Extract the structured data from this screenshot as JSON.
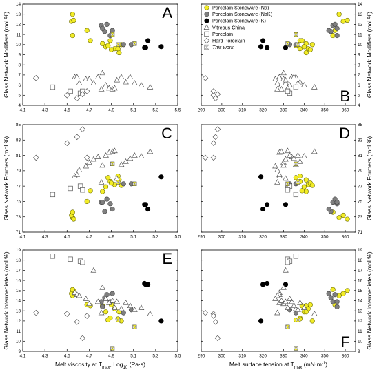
{
  "chart_data": {
    "type": "scatter",
    "legend": {
      "placement": "top-left of panel D",
      "items": [
        {
          "key": "na",
          "label": "Porcelain Stoneware (Na)",
          "marker": "circle",
          "fill": "#f2ec27",
          "stroke": "#6b6b00"
        },
        {
          "key": "nak",
          "label": "Porcelain Stoneware (NaK)",
          "marker": "circle",
          "fill": "#7f7f7f",
          "stroke": "#444444"
        },
        {
          "key": "k",
          "label": "Porcelain Stoneware (K)",
          "marker": "circle",
          "fill": "#000000",
          "stroke": "#000000"
        },
        {
          "key": "vitreous",
          "label": "Vitreous China",
          "marker": "triangle",
          "fill": "#ffffff",
          "stroke": "#555555"
        },
        {
          "key": "porcelain",
          "label": "Porcelain",
          "marker": "square",
          "fill": "#ffffff",
          "stroke": "#555555"
        },
        {
          "key": "hard",
          "label": "Hard Porcelain",
          "marker": "diamond",
          "fill": "#ffffff",
          "stroke": "#555555"
        },
        {
          "key": "thiswork",
          "label": "This work",
          "marker": "hourglass",
          "fill": "#ffffff",
          "stroke": "#777777",
          "italic": true
        }
      ]
    },
    "x_axes": {
      "viscosity": {
        "label": "Melt viscosity at T",
        "label_sub": "max",
        "label_suffix": ", Log",
        "label_sub2": "10",
        "label_end": " (Pa·s)",
        "range": [
          4.1,
          5.5
        ],
        "ticks": [
          "4.1",
          "4.3",
          "4.5",
          "4.7",
          "4.9",
          "5.1",
          "5.3",
          "5.5"
        ]
      },
      "tension": {
        "label": "Melt surface tension at T",
        "label_sub": "max",
        "label_end": " (mN·m",
        "label_sup": "-1",
        "label_close": ")",
        "range": [
          290,
          365
        ],
        "ticks": [
          "290",
          "300",
          "310",
          "320",
          "330",
          "340",
          "350",
          "360"
        ]
      }
    },
    "rows": [
      {
        "ylabel": "Glass Network Modifiers (mol %)",
        "range": [
          4,
          14
        ],
        "ticks": [
          "4",
          "5",
          "6",
          "7",
          "8",
          "9",
          "10",
          "11",
          "12",
          "13",
          "14"
        ],
        "letters": [
          "A",
          "B"
        ],
        "left_letter_pos": "top-right",
        "right_letter_pos": "bottom-right"
      },
      {
        "ylabel": "Glass Network Formers (mol %)",
        "range": [
          71,
          85
        ],
        "ticks": [
          "71",
          "73",
          "75",
          "77",
          "79",
          "81",
          "83",
          "85"
        ],
        "letters": [
          "C",
          "D"
        ],
        "left_letter_pos": "top-right",
        "right_letter_pos": "top-right"
      },
      {
        "ylabel": "Glass Network Intermediates (mol %)",
        "range": [
          9,
          19
        ],
        "ticks": [
          "9",
          "10",
          "11",
          "12",
          "13",
          "14",
          "15",
          "16",
          "17",
          "18",
          "19"
        ],
        "letters": [
          "E",
          "F"
        ],
        "left_letter_pos": "top-right",
        "right_letter_pos": "bottom-right"
      }
    ],
    "series": [
      {
        "key": "na",
        "name": "Porcelain Stoneware (Na)",
        "points": [
          {
            "visc": 4.55,
            "st": 357,
            "mod": 13.0,
            "form": 72.9,
            "int": 14.5
          },
          {
            "visc": 4.54,
            "st": 359,
            "mod": 12.3,
            "form": 73.2,
            "int": 14.7
          },
          {
            "visc": 4.56,
            "st": 361,
            "mod": 12.4,
            "form": 72.7,
            "int": 15.0
          },
          {
            "visc": 4.68,
            "st": 355,
            "mod": 11.4,
            "form": 75.0,
            "int": 13.6
          },
          {
            "visc": 4.55,
            "st": 354,
            "mod": 10.9,
            "form": 73.6,
            "int": 15.1
          },
          {
            "visc": 4.82,
            "st": 341,
            "mod": 10.1,
            "form": 76.3,
            "int": 13.5
          },
          {
            "visc": 4.85,
            "st": 340,
            "mod": 9.8,
            "form": 76.9,
            "int": 12.9
          },
          {
            "visc": 4.89,
            "st": 338,
            "mod": 10.4,
            "form": 77.6,
            "int": 12.3
          },
          {
            "visc": 4.93,
            "st": 342,
            "mod": 9.6,
            "form": 77.2,
            "int": 13.2
          },
          {
            "visc": 4.9,
            "st": 343,
            "mod": 9.5,
            "form": 77.4,
            "int": 13.6
          },
          {
            "visc": 4.97,
            "st": 341,
            "mod": 9.2,
            "form": 77.8,
            "int": 12.9
          },
          {
            "visc": 4.87,
            "st": 336,
            "mod": 9.9,
            "form": 78.1,
            "int": 12.1
          },
          {
            "visc": 4.96,
            "st": 338,
            "mod": 9.6,
            "form": 78.3,
            "int": 12.2
          },
          {
            "visc": 4.99,
            "st": 344,
            "mod": 10.0,
            "form": 77.1,
            "int": 12.0
          },
          {
            "visc": 4.71,
            "st": 339,
            "mod": 10.4,
            "form": 76.4,
            "int": 13.5
          }
        ]
      },
      {
        "key": "nak",
        "name": "Porcelain Stoneware (NaK)",
        "points": [
          {
            "visc": 4.81,
            "st": 354,
            "mod": 11.9,
            "form": 74.9,
            "int": 13.9
          },
          {
            "visc": 4.84,
            "st": 353,
            "mod": 11.3,
            "form": 73.7,
            "int": 14.3
          },
          {
            "visc": 4.86,
            "st": 355,
            "mod": 12.0,
            "form": 75.3,
            "int": 14.6
          },
          {
            "visc": 4.89,
            "st": 356,
            "mod": 10.9,
            "form": 74.7,
            "int": 13.9
          },
          {
            "visc": 4.91,
            "st": 352,
            "mod": 11.4,
            "form": 74.0,
            "int": 14.7
          },
          {
            "visc": 4.82,
            "st": 356,
            "mod": 11.6,
            "form": 74.9,
            "int": 13.4
          },
          {
            "visc": 5.01,
            "st": 336,
            "mod": 10.0,
            "form": 77.3,
            "int": 12.8
          },
          {
            "visc": 5.08,
            "st": 333,
            "mod": 10.0,
            "form": 77.3,
            "int": 13.1
          }
        ]
      },
      {
        "key": "k",
        "name": "Porcelain Stoneware (K)",
        "points": [
          {
            "visc": 5.2,
            "st": 322,
            "mod": 9.7,
            "form": 74.6,
            "int": 15.7
          },
          {
            "visc": 5.23,
            "st": 320,
            "mod": 10.4,
            "form": 74.0,
            "int": 15.6
          },
          {
            "visc": 5.35,
            "st": 319,
            "mod": 9.8,
            "form": 78.2,
            "int": 12.0
          },
          {
            "visc": 5.21,
            "st": 331,
            "mod": 9.7,
            "form": 74.6,
            "int": 15.6
          }
        ]
      },
      {
        "key": "vitreous",
        "name": "Vitreous China",
        "points": [
          {
            "visc": 4.57,
            "st": 328,
            "mod": 6.8,
            "form": 78.3,
            "int": 14.8
          },
          {
            "visc": 4.59,
            "st": 328,
            "mod": 6.8,
            "form": 78.5,
            "int": 14.6
          },
          {
            "visc": 4.61,
            "st": 327,
            "mod": 6.2,
            "form": 79.1,
            "int": 14.5
          },
          {
            "visc": 4.67,
            "st": 326,
            "mod": 6.6,
            "form": 79.6,
            "int": 14.2
          },
          {
            "visc": 4.7,
            "st": 330,
            "mod": 6.6,
            "form": 80.1,
            "int": 13.7
          },
          {
            "visc": 4.74,
            "st": 331,
            "mod": 6.2,
            "form": 80.5,
            "int": 17.0
          },
          {
            "visc": 4.78,
            "st": 334,
            "mod": 6.8,
            "form": 80.8,
            "int": 13.9
          },
          {
            "visc": 4.82,
            "st": 330,
            "mod": 7.2,
            "form": 79.7,
            "int": 15.3
          },
          {
            "visc": 4.85,
            "st": 333,
            "mod": 6.0,
            "form": 81.0,
            "int": 14.2
          },
          {
            "visc": 4.88,
            "st": 328,
            "mod": 5.7,
            "form": 81.4,
            "int": 13.8
          },
          {
            "visc": 4.91,
            "st": 329,
            "mod": 5.6,
            "form": 81.5,
            "int": 14.0
          },
          {
            "visc": 4.93,
            "st": 332,
            "mod": 5.7,
            "form": 81.6,
            "int": 13.3
          },
          {
            "visc": 4.95,
            "st": 331,
            "mod": 6.5,
            "form": 78.0,
            "int": 13.9
          },
          {
            "visc": 4.99,
            "st": 336,
            "mod": 6.8,
            "form": 79.8,
            "int": 13.2
          },
          {
            "visc": 5.03,
            "st": 338,
            "mod": 6.3,
            "form": 80.2,
            "int": 13.8
          },
          {
            "visc": 5.07,
            "st": 335,
            "mod": 6.8,
            "form": 80.6,
            "int": 13.5
          },
          {
            "visc": 5.11,
            "st": 337,
            "mod": 6.2,
            "form": 81.0,
            "int": 13.1
          },
          {
            "visc": 5.17,
            "st": 340,
            "mod": 6.0,
            "form": 80.9,
            "int": 13.3
          },
          {
            "visc": 5.25,
            "st": 345,
            "mod": 5.8,
            "form": 81.5,
            "int": 12.7
          },
          {
            "visc": 4.81,
            "st": 327,
            "mod": 5.6,
            "form": 77.5,
            "int": 12.8
          }
        ]
      },
      {
        "key": "porcelain",
        "name": "Porcelain",
        "points": [
          {
            "visc": 4.37,
            "st": 336,
            "mod": 5.8,
            "form": 75.9,
            "int": 18.4
          },
          {
            "visc": 4.53,
            "st": 332,
            "mod": 5.4,
            "form": 76.7,
            "int": 18.1
          },
          {
            "visc": 4.62,
            "st": 333,
            "mod": 5.2,
            "form": 77.0,
            "int": 17.9
          },
          {
            "visc": 4.64,
            "st": 332,
            "mod": 5.4,
            "form": 76.5,
            "int": 17.8
          }
        ]
      },
      {
        "key": "hard",
        "name": "Hard Porcelain",
        "points": [
          {
            "visc": 4.22,
            "st": 292,
            "mod": 6.7,
            "form": 80.7,
            "int": 12.8
          },
          {
            "visc": 4.5,
            "st": 296,
            "mod": 5.0,
            "form": 82.6,
            "int": 12.7
          },
          {
            "visc": 4.59,
            "st": 297,
            "mod": 4.7,
            "form": 83.4,
            "int": 11.9
          },
          {
            "visc": 4.64,
            "st": 298,
            "mod": 5.1,
            "form": 84.4,
            "int": 10.3
          },
          {
            "visc": 4.68,
            "st": 296,
            "mod": 5.4,
            "form": 80.7,
            "int": 12.5
          }
        ]
      },
      {
        "key": "thiswork",
        "name": "This work",
        "points": [
          {
            "visc": 4.91,
            "st": 336,
            "mod": 11.0,
            "form": 79.9,
            "int": 9.3
          },
          {
            "visc": 4.96,
            "st": 337,
            "mod": 10.0,
            "form": 77.5,
            "int": 12.1
          },
          {
            "visc": 5.11,
            "st": 332,
            "mod": 10.1,
            "form": 77.3,
            "int": 11.4
          }
        ]
      }
    ]
  }
}
